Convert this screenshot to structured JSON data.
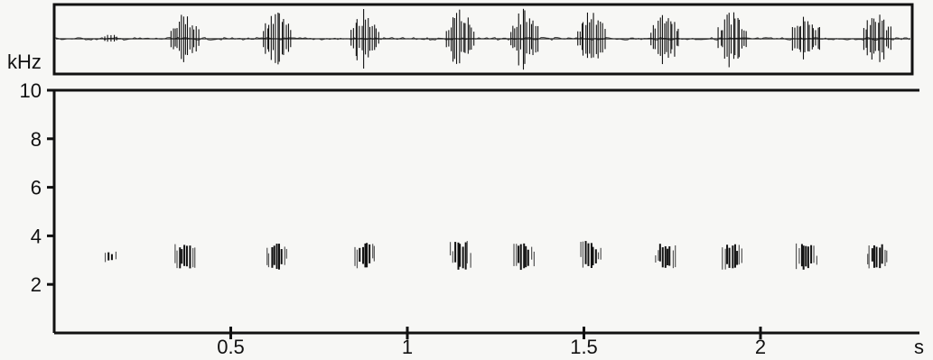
{
  "chart_data": [
    {
      "type": "line",
      "panel": "oscillogram",
      "title": "",
      "xlabel": "",
      "ylabel": "",
      "pulse_groups_s": [
        0.16,
        0.37,
        0.63,
        0.88,
        1.15,
        1.33,
        1.52,
        1.73,
        1.92,
        2.13,
        2.33
      ],
      "pulse_relative_amplitude": [
        0.2,
        0.85,
        0.95,
        0.95,
        0.95,
        1.0,
        0.95,
        0.95,
        0.95,
        0.9,
        0.95
      ]
    },
    {
      "type": "heatmap",
      "panel": "spectrogram",
      "title": "",
      "ylabel": "kHz",
      "xlabel": "s",
      "xlim": [
        0,
        2.45
      ],
      "ylim": [
        0,
        10
      ],
      "x_ticks": [
        0.5,
        1,
        1.5,
        2
      ],
      "x_tick_labels": [
        "0.5",
        "1",
        "1.5",
        "2"
      ],
      "y_ticks": [
        2,
        4,
        6,
        8,
        10
      ],
      "y_tick_labels": [
        "2",
        "4",
        "6",
        "8",
        "10"
      ],
      "syllables": [
        {
          "time_s": 0.16,
          "freq_low_khz": 2.9,
          "freq_high_khz": 3.4
        },
        {
          "time_s": 0.37,
          "freq_low_khz": 2.6,
          "freq_high_khz": 3.7
        },
        {
          "time_s": 0.63,
          "freq_low_khz": 2.6,
          "freq_high_khz": 3.7
        },
        {
          "time_s": 0.88,
          "freq_low_khz": 2.6,
          "freq_high_khz": 3.8
        },
        {
          "time_s": 1.15,
          "freq_low_khz": 2.6,
          "freq_high_khz": 3.8
        },
        {
          "time_s": 1.33,
          "freq_low_khz": 2.6,
          "freq_high_khz": 3.7
        },
        {
          "time_s": 1.52,
          "freq_low_khz": 2.6,
          "freq_high_khz": 3.8
        },
        {
          "time_s": 1.73,
          "freq_low_khz": 2.6,
          "freq_high_khz": 3.7
        },
        {
          "time_s": 1.92,
          "freq_low_khz": 2.6,
          "freq_high_khz": 3.7
        },
        {
          "time_s": 2.13,
          "freq_low_khz": 2.6,
          "freq_high_khz": 3.7
        },
        {
          "time_s": 2.33,
          "freq_low_khz": 2.6,
          "freq_high_khz": 3.7
        }
      ]
    }
  ]
}
